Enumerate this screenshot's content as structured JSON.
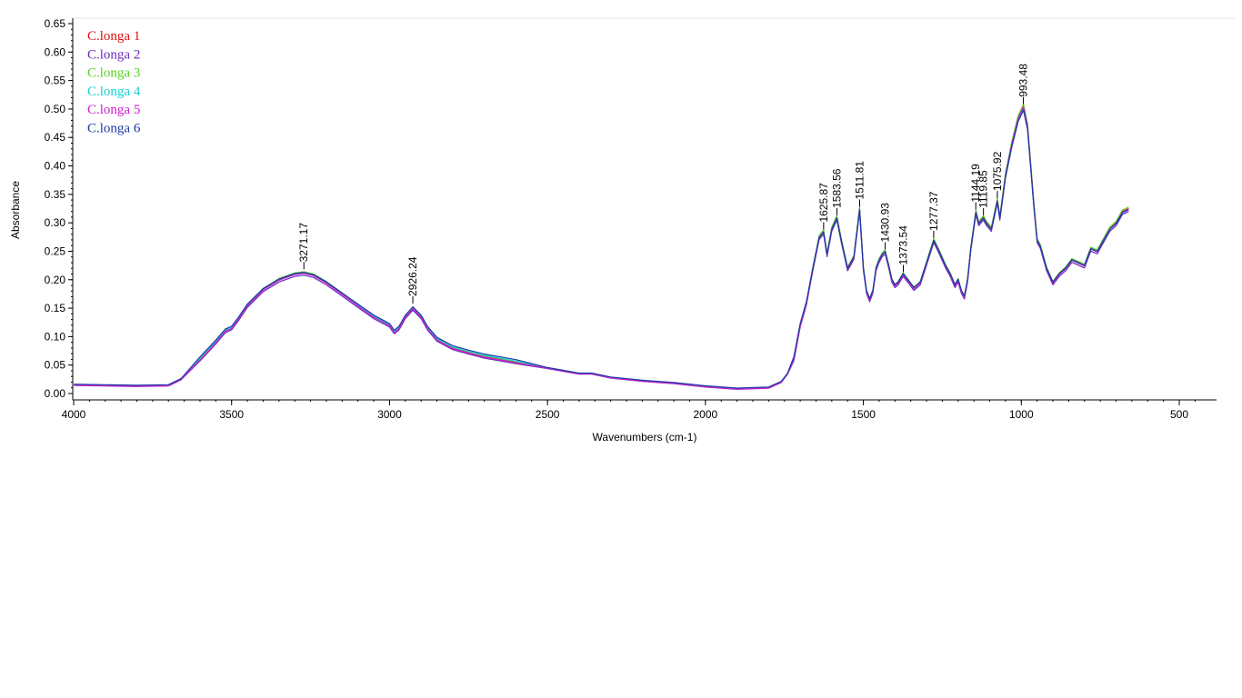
{
  "chart_data": {
    "type": "line",
    "title": "",
    "xlabel": "Wavenumbers (cm-1)",
    "ylabel": "Absorbance",
    "xlim": [
      4000,
      450
    ],
    "ylim": [
      -0.01,
      0.655
    ],
    "x_reversed": true,
    "grid": false,
    "legend_placement": "top-left",
    "x_ticks": [
      4000,
      3500,
      3000,
      2500,
      2000,
      1500,
      1000,
      500
    ],
    "x_tick_labels": [
      "4000",
      "3500",
      "3000",
      "2500",
      "2000",
      "1500",
      "1000",
      "500"
    ],
    "y_ticks": [
      0.0,
      0.05,
      0.1,
      0.15,
      0.2,
      0.25,
      0.3,
      0.35,
      0.4,
      0.45,
      0.5,
      0.55,
      0.6,
      0.65
    ],
    "y_tick_labels": [
      "0.00",
      "0.05",
      "0.10",
      "0.15",
      "0.20",
      "0.25",
      "0.30",
      "0.35",
      "0.40",
      "0.45",
      "0.50",
      "0.55",
      "0.60",
      "0.65"
    ],
    "x": [
      3999,
      3900,
      3800,
      3700,
      3660,
      3600,
      3550,
      3520,
      3500,
      3480,
      3450,
      3400,
      3350,
      3300,
      3271,
      3240,
      3200,
      3150,
      3100,
      3050,
      3000,
      2985,
      2970,
      2950,
      2926,
      2900,
      2880,
      2850,
      2800,
      2750,
      2700,
      2600,
      2500,
      2400,
      2360,
      2300,
      2200,
      2100,
      2000,
      1900,
      1800,
      1760,
      1740,
      1720,
      1700,
      1680,
      1660,
      1640,
      1626,
      1615,
      1600,
      1584,
      1570,
      1550,
      1530,
      1512,
      1500,
      1490,
      1480,
      1470,
      1460,
      1450,
      1440,
      1431,
      1420,
      1410,
      1400,
      1390,
      1374,
      1360,
      1340,
      1320,
      1300,
      1277,
      1260,
      1240,
      1225,
      1210,
      1200,
      1190,
      1180,
      1170,
      1160,
      1144,
      1135,
      1120,
      1110,
      1095,
      1076,
      1068,
      1050,
      1030,
      1010,
      993,
      980,
      970,
      960,
      950,
      940,
      930,
      920,
      900,
      880,
      860,
      840,
      820,
      800,
      790,
      780,
      760,
      740,
      720,
      700,
      680,
      660
    ],
    "series": [
      {
        "name": "C.longa 1",
        "color": "#e01010",
        "y_offset": 0.0,
        "peak_scale": 1.0
      },
      {
        "name": "C.longa 2",
        "color": "#6a2ab8",
        "y_offset": -0.002,
        "peak_scale": 0.99
      },
      {
        "name": "C.longa 3",
        "color": "#5ad02a",
        "y_offset": 0.001,
        "peak_scale": 1.005
      },
      {
        "name": "C.longa 4",
        "color": "#1ad0d0",
        "y_offset": 0.003,
        "peak_scale": 0.985
      },
      {
        "name": "C.longa 5",
        "color": "#d020d0",
        "y_offset": -0.001,
        "peak_scale": 1.0
      },
      {
        "name": "C.longa 6",
        "color": "#1a3aa0",
        "y_offset": 0.006,
        "peak_scale": 0.975
      }
    ],
    "base_y": [
      0.015,
      0.014,
      0.013,
      0.014,
      0.025,
      0.06,
      0.09,
      0.11,
      0.115,
      0.13,
      0.155,
      0.183,
      0.2,
      0.21,
      0.212,
      0.208,
      0.195,
      0.175,
      0.155,
      0.135,
      0.12,
      0.108,
      0.115,
      0.135,
      0.15,
      0.135,
      0.115,
      0.095,
      0.08,
      0.072,
      0.065,
      0.055,
      0.045,
      0.035,
      0.035,
      0.028,
      0.022,
      0.018,
      0.012,
      0.008,
      0.01,
      0.02,
      0.035,
      0.06,
      0.12,
      0.16,
      0.22,
      0.275,
      0.285,
      0.245,
      0.29,
      0.31,
      0.27,
      0.22,
      0.24,
      0.325,
      0.22,
      0.18,
      0.165,
      0.18,
      0.22,
      0.235,
      0.245,
      0.25,
      0.225,
      0.2,
      0.19,
      0.195,
      0.21,
      0.2,
      0.185,
      0.195,
      0.23,
      0.27,
      0.25,
      0.225,
      0.21,
      0.19,
      0.2,
      0.18,
      0.17,
      0.2,
      0.255,
      0.32,
      0.3,
      0.31,
      0.3,
      0.29,
      0.34,
      0.31,
      0.385,
      0.44,
      0.485,
      0.505,
      0.47,
      0.4,
      0.33,
      0.27,
      0.26,
      0.24,
      0.22,
      0.195,
      0.21,
      0.22,
      0.235,
      0.23,
      0.225,
      0.24,
      0.255,
      0.25,
      0.27,
      0.29,
      0.3,
      0.32,
      0.325
    ],
    "peak_labels": [
      {
        "x": 3271.17,
        "label": "3271.17",
        "y": 0.215
      },
      {
        "x": 2926.24,
        "label": "2926.24",
        "y": 0.155
      },
      {
        "x": 1625.87,
        "label": "1625.87",
        "y": 0.285
      },
      {
        "x": 1583.56,
        "label": "1583.56",
        "y": 0.31
      },
      {
        "x": 1511.81,
        "label": "1511.81",
        "y": 0.325
      },
      {
        "x": 1430.93,
        "label": "1430.93",
        "y": 0.25
      },
      {
        "x": 1373.54,
        "label": "1373.54",
        "y": 0.21
      },
      {
        "x": 1277.37,
        "label": "1277.37",
        "y": 0.27
      },
      {
        "x": 1144.19,
        "label": "1144.19",
        "y": 0.32
      },
      {
        "x": 1119.85,
        "label": "1119.85",
        "y": 0.31
      },
      {
        "x": 1075.92,
        "label": "1075.92",
        "y": 0.34
      },
      {
        "x": 993.48,
        "label": "993.48",
        "y": 0.505
      }
    ]
  }
}
